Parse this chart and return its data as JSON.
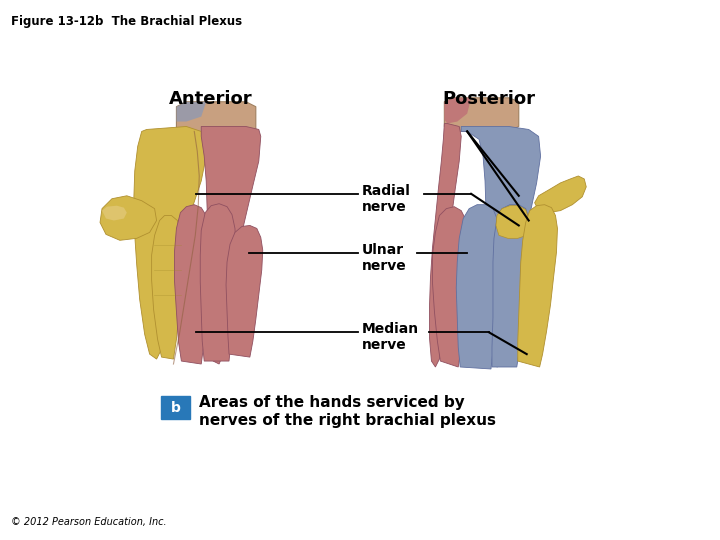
{
  "title": "Figure 13-12b  The Brachial Plexus",
  "title_fontsize": 8.5,
  "copyright": "© 2012 Pearson Education, Inc.",
  "copyright_fontsize": 7,
  "anterior_label": "Anterior",
  "posterior_label": "Posterior",
  "label_fontsize": 13,
  "radial_label": "Radial\nnerve",
  "ulnar_label": "Ulnar\nnerve",
  "median_label": "Median\nnerve",
  "nerve_fontsize": 10,
  "b_box_color": "#2878B8",
  "caption_line1": "Areas of the hands serviced by",
  "caption_line2": "nerves of the right brachial plexus",
  "caption_fontsize": 11,
  "bg_color": "#ffffff",
  "yellow": "#D4B84A",
  "red_pink": "#C07878",
  "blue_gray": "#8898B8",
  "skin_light": "#D8B090",
  "skin_wrist": "#C8A080"
}
